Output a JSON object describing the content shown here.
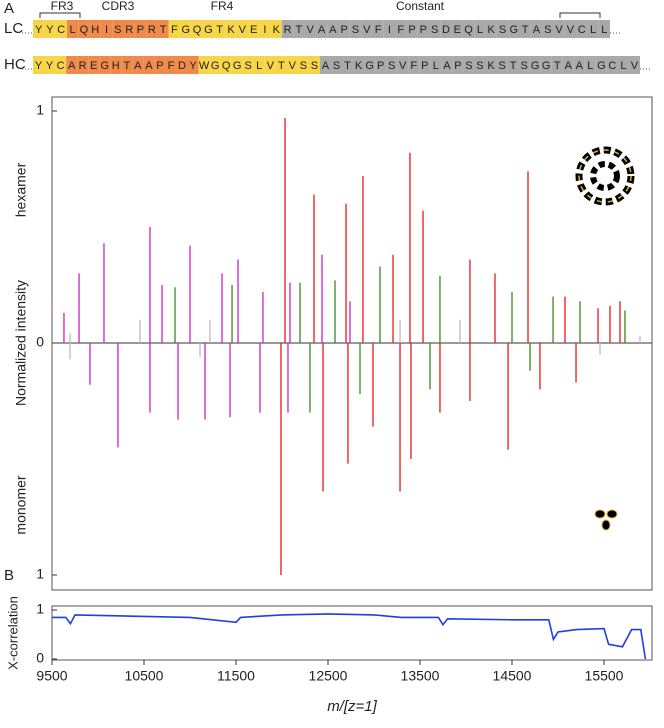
{
  "sequence": {
    "panel": "A",
    "regions": [
      "FR3",
      "CDR3",
      "FR4",
      "Constant"
    ],
    "lc": {
      "label": "LC",
      "color": "#cc22cc",
      "segments": [
        {
          "color": "#f7d547",
          "residues": [
            "Y",
            "Y",
            "C"
          ]
        },
        {
          "color": "#f08a4b",
          "residues": [
            "L",
            "Q",
            "H",
            "I",
            "S",
            "R",
            "P",
            "R",
            "T"
          ]
        },
        {
          "color": "#f7d547",
          "residues": [
            "F",
            "G",
            "Q",
            "G",
            "T",
            "K",
            "V",
            "E",
            "I",
            "K"
          ]
        },
        {
          "color": "#a9a9a9",
          "residues": [
            "R",
            "T",
            "V",
            "A",
            "A",
            "P",
            "S",
            "V",
            "F",
            "I",
            "F",
            "P",
            "P",
            "S",
            "D",
            "E",
            "Q",
            "L",
            "K",
            "S",
            "G",
            "T",
            "A",
            "S",
            "V",
            "V",
            "C",
            "L",
            "L"
          ]
        }
      ]
    },
    "hc": {
      "label": "HC",
      "color": "#e8191a",
      "segments": [
        {
          "color": "#f7d547",
          "residues": [
            "Y",
            "Y",
            "C"
          ]
        },
        {
          "color": "#f08a4b",
          "residues": [
            "A",
            "R",
            "E",
            "G",
            "H",
            "T",
            "A",
            "A",
            "P",
            "F",
            "D",
            "Y"
          ]
        },
        {
          "color": "#f7d547",
          "residues": [
            "W",
            "G",
            "Q",
            "G",
            "S",
            "L",
            "V",
            "T",
            "V",
            "S",
            "S"
          ]
        },
        {
          "color": "#a9a9a9",
          "residues": [
            "A",
            "S",
            "T",
            "K",
            "G",
            "P",
            "S",
            "V",
            "F",
            "P",
            "L",
            "A",
            "P",
            "S",
            "S",
            "K",
            "S",
            "T",
            "S",
            "G",
            "G",
            "T",
            "A",
            "A",
            "L",
            "G",
            "C",
            "L",
            "V"
          ]
        }
      ]
    }
  },
  "chart_data": [
    {
      "type": "stem",
      "ylabel": "hexamer",
      "shared_ylabel": "Normalized intensity",
      "xlim": [
        9500,
        16000
      ],
      "ylim": [
        0,
        1
      ],
      "yticks": [
        0,
        1
      ],
      "series": [
        {
          "color": "#cc22cc",
          "x": [
            9630,
            9794,
            10065,
            10565,
            10696,
            11000,
            11348,
            11522,
            11793,
            12087,
            12435,
            12739
          ],
          "values": [
            0.13,
            0.3,
            0.43,
            0.5,
            0.25,
            0.42,
            0.3,
            0.36,
            0.22,
            0.26,
            0.38,
            0.18
          ]
        },
        {
          "color": "#e8191a",
          "x": [
            12033,
            12348,
            12696,
            12880,
            13207,
            13391,
            13533,
            14043,
            14315,
            14674,
            15076,
            15435,
            15565,
            15674
          ],
          "values": [
            0.97,
            0.64,
            0.6,
            0.72,
            0.38,
            0.82,
            0.57,
            0.36,
            0.3,
            0.74,
            0.2,
            0.15,
            0.16,
            0.18
          ]
        },
        {
          "color": "#3a8a1e",
          "x": [
            10837,
            11457,
            12196,
            12576,
            13065,
            13717,
            14500,
            14946,
            15239,
            15728
          ],
          "values": [
            0.24,
            0.25,
            0.26,
            0.27,
            0.33,
            0.29,
            0.22,
            0.2,
            0.18,
            0.14
          ]
        },
        {
          "color": "#bbbbbb",
          "x": [
            9696,
            10457,
            11217,
            13283,
            13935,
            15891
          ],
          "values": [
            0.04,
            0.1,
            0.1,
            0.1,
            0.1,
            0.03
          ]
        }
      ]
    },
    {
      "type": "stem",
      "ylabel": "monomer",
      "xlim": [
        9500,
        16000
      ],
      "ylim": [
        0,
        1
      ],
      "yticks": [
        1
      ],
      "series": [
        {
          "color": "#cc22cc",
          "x": [
            9913,
            10217,
            10565,
            10870,
            11163,
            11435,
            11761,
            12065
          ],
          "values": [
            0.18,
            0.45,
            0.3,
            0.33,
            0.33,
            0.32,
            0.3,
            0.3
          ]
        },
        {
          "color": "#e8191a",
          "x": [
            11989,
            12446,
            12717,
            13283,
            13402,
            12989,
            13717,
            14043,
            14457,
            14804,
            15196
          ],
          "values": [
            1.0,
            0.64,
            0.52,
            0.64,
            0.5,
            0.36,
            0.3,
            0.25,
            0.46,
            0.2,
            0.17
          ]
        },
        {
          "color": "#3a8a1e",
          "x": [
            12304,
            12848,
            13609,
            14696
          ],
          "values": [
            0.3,
            0.22,
            0.2,
            0.12
          ]
        },
        {
          "color": "#bbbbbb",
          "x": [
            9696,
            11109,
            15457
          ],
          "values": [
            0.07,
            0.06,
            0.05
          ]
        }
      ]
    },
    {
      "type": "line",
      "panel": "B",
      "ylabel": "X-correlation",
      "xlabel": "m/[z=1]",
      "color": "#1f3fe0",
      "xlim": [
        9500,
        16000
      ],
      "xticks": [
        9500,
        10500,
        11500,
        12500,
        13500,
        14500,
        15500
      ],
      "ylim": [
        0,
        1
      ],
      "yticks": [
        0,
        1
      ],
      "x": [
        9500,
        9650,
        9700,
        9750,
        10500,
        11000,
        11500,
        11550,
        12000,
        12500,
        13000,
        13300,
        13700,
        13750,
        13800,
        14500,
        14900,
        14950,
        15000,
        15200,
        15500,
        15550,
        15700,
        15800,
        15900,
        15950
      ],
      "values": [
        0.85,
        0.85,
        0.72,
        0.9,
        0.87,
        0.85,
        0.75,
        0.85,
        0.9,
        0.92,
        0.9,
        0.85,
        0.85,
        0.7,
        0.82,
        0.8,
        0.8,
        0.4,
        0.55,
        0.6,
        0.62,
        0.3,
        0.25,
        0.6,
        0.6,
        0.0
      ]
    }
  ]
}
